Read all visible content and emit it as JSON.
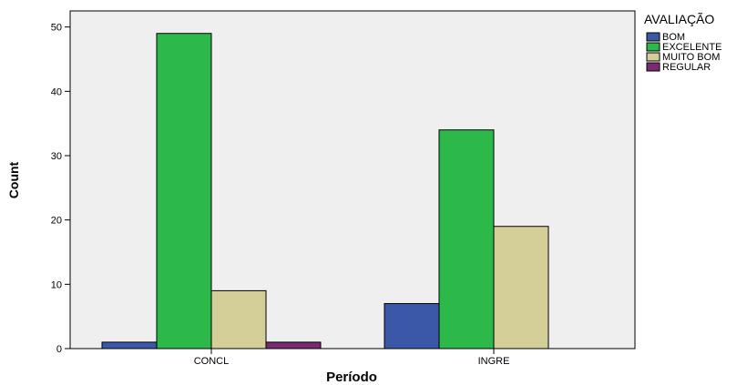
{
  "chart_data": {
    "type": "bar",
    "categories": [
      "CONCL",
      "INGRE"
    ],
    "series": [
      {
        "name": "BOM",
        "values": [
          1,
          7
        ],
        "color": "#3b57a8"
      },
      {
        "name": "EXCELENTE",
        "values": [
          49,
          34
        ],
        "color": "#2db84a"
      },
      {
        "name": "MUITO BOM",
        "values": [
          9,
          19
        ],
        "color": "#d4cf98"
      },
      {
        "name": "REGULAR",
        "values": [
          1,
          0
        ],
        "color": "#7a2a72"
      }
    ],
    "title": "",
    "xlabel": "Período",
    "ylabel": "Count",
    "ylim": [
      0,
      52.5
    ],
    "yticks": [
      0,
      10,
      20,
      30,
      40,
      50
    ],
    "legend_title": "AVALIAÇÃO",
    "legend_position": "right",
    "plot_background": "#efefef",
    "grid": false
  }
}
